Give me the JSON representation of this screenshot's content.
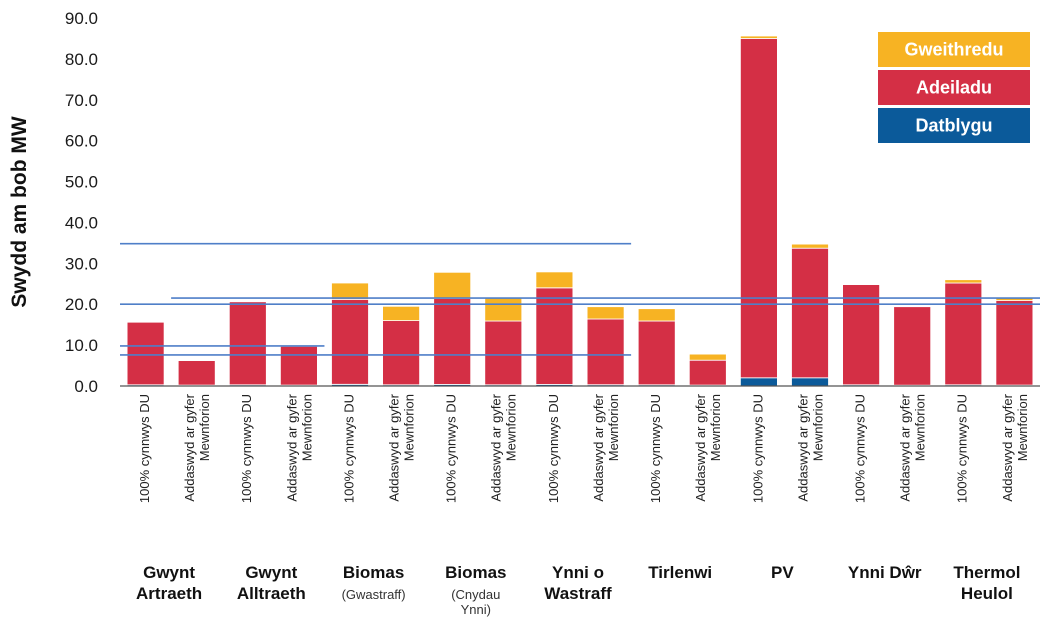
{
  "chart_data": {
    "type": "bar",
    "stacked": true,
    "ylabel": "Swydd am bob MW",
    "ylim": [
      0,
      90
    ],
    "yticks": [
      "0.0",
      "10.0",
      "20.0",
      "30.0",
      "40.0",
      "50.0",
      "60.0",
      "70.0",
      "80.0",
      "90.0"
    ],
    "grid": false,
    "legend_position": "top-right",
    "groups": [
      {
        "name": "Gwynt",
        "name2": "Artraeth",
        "sub": "",
        "sub2": ""
      },
      {
        "name": "Gwynt",
        "name2": "Alltraeth",
        "sub": "",
        "sub2": ""
      },
      {
        "name": "Biomas",
        "name2": "",
        "sub": "(Gwastraff)",
        "sub2": ""
      },
      {
        "name": "Biomas",
        "name2": "",
        "sub": "(Cnydau",
        "sub2": "Ynni)"
      },
      {
        "name": "Ynni o",
        "name2": "Wastraff",
        "sub": "",
        "sub2": ""
      },
      {
        "name": "Tirlenwi",
        "name2": "",
        "sub": "",
        "sub2": ""
      },
      {
        "name": "PV",
        "name2": "",
        "sub": "",
        "sub2": ""
      },
      {
        "name": "Ynni Dŵr",
        "name2": "",
        "sub": "",
        "sub2": ""
      },
      {
        "name": "Thermol",
        "name2": "Heulol",
        "sub": "",
        "sub2": ""
      }
    ],
    "categories": [
      {
        "line1": "100% cynnwys DU",
        "line2": ""
      },
      {
        "line1": "Addaswyd ar gyfer",
        "line2": "Mewnforion"
      },
      {
        "line1": "100% cynnwys DU",
        "line2": ""
      },
      {
        "line1": "Addaswyd ar gyfer",
        "line2": "Mewnforion"
      },
      {
        "line1": "100% cynnwys DU",
        "line2": ""
      },
      {
        "line1": "Addaswyd ar gyfer",
        "line2": "Mewnforion"
      },
      {
        "line1": "100% cynnwys DU",
        "line2": ""
      },
      {
        "line1": "Addaswyd ar gyfer",
        "line2": "Mewnforion"
      },
      {
        "line1": "100% cynnwys DU",
        "line2": ""
      },
      {
        "line1": "Addaswyd ar gyfer",
        "line2": "Mewnforion"
      },
      {
        "line1": "100% cynnwys DU",
        "line2": ""
      },
      {
        "line1": "Addaswyd ar gyfer",
        "line2": "Mewnforion"
      },
      {
        "line1": "100% cynnwys DU",
        "line2": ""
      },
      {
        "line1": "Addaswyd ar gyfer",
        "line2": "Mewnforion"
      },
      {
        "line1": "100% cynnwys DU",
        "line2": ""
      },
      {
        "line1": "Addaswyd ar gyfer",
        "line2": "Mewnforion"
      },
      {
        "line1": "100% cynnwys DU",
        "line2": ""
      },
      {
        "line1": "Addaswyd ar gyfer",
        "line2": "Mewnforion"
      }
    ],
    "series": [
      {
        "name": "Datblygu",
        "color": "#0b5a9a",
        "values": [
          0.3,
          0.2,
          0.3,
          0.2,
          0.4,
          0.3,
          0.4,
          0.3,
          0.4,
          0.3,
          0.3,
          0.2,
          2.0,
          2.0,
          0.3,
          0.2,
          0.3,
          0.2
        ]
      },
      {
        "name": "Adeiladu",
        "color": "#d42f45",
        "values": [
          15.3,
          6.0,
          20.3,
          9.5,
          20.8,
          15.7,
          21.0,
          15.6,
          23.6,
          16.1,
          15.6,
          6.1,
          83.0,
          31.7,
          24.5,
          19.2,
          24.9,
          20.7
        ]
      },
      {
        "name": "Gweithredu",
        "color": "#f7b323",
        "values": [
          0.0,
          0.0,
          0.0,
          0.0,
          4.0,
          3.5,
          6.4,
          5.7,
          3.9,
          3.0,
          3.0,
          1.5,
          0.6,
          1.0,
          0.0,
          0.0,
          0.8,
          0.8
        ]
      }
    ],
    "reference_lines": [
      {
        "y": 34.8,
        "x_from": 0,
        "x_to": 10
      },
      {
        "y": 21.5,
        "x_from": 1,
        "x_to": 18
      },
      {
        "y": 20.0,
        "x_from": 0,
        "x_to": 18
      },
      {
        "y": 9.8,
        "x_from": 0,
        "x_to": 4
      },
      {
        "y": 7.6,
        "x_from": 0,
        "x_to": 10
      }
    ]
  }
}
